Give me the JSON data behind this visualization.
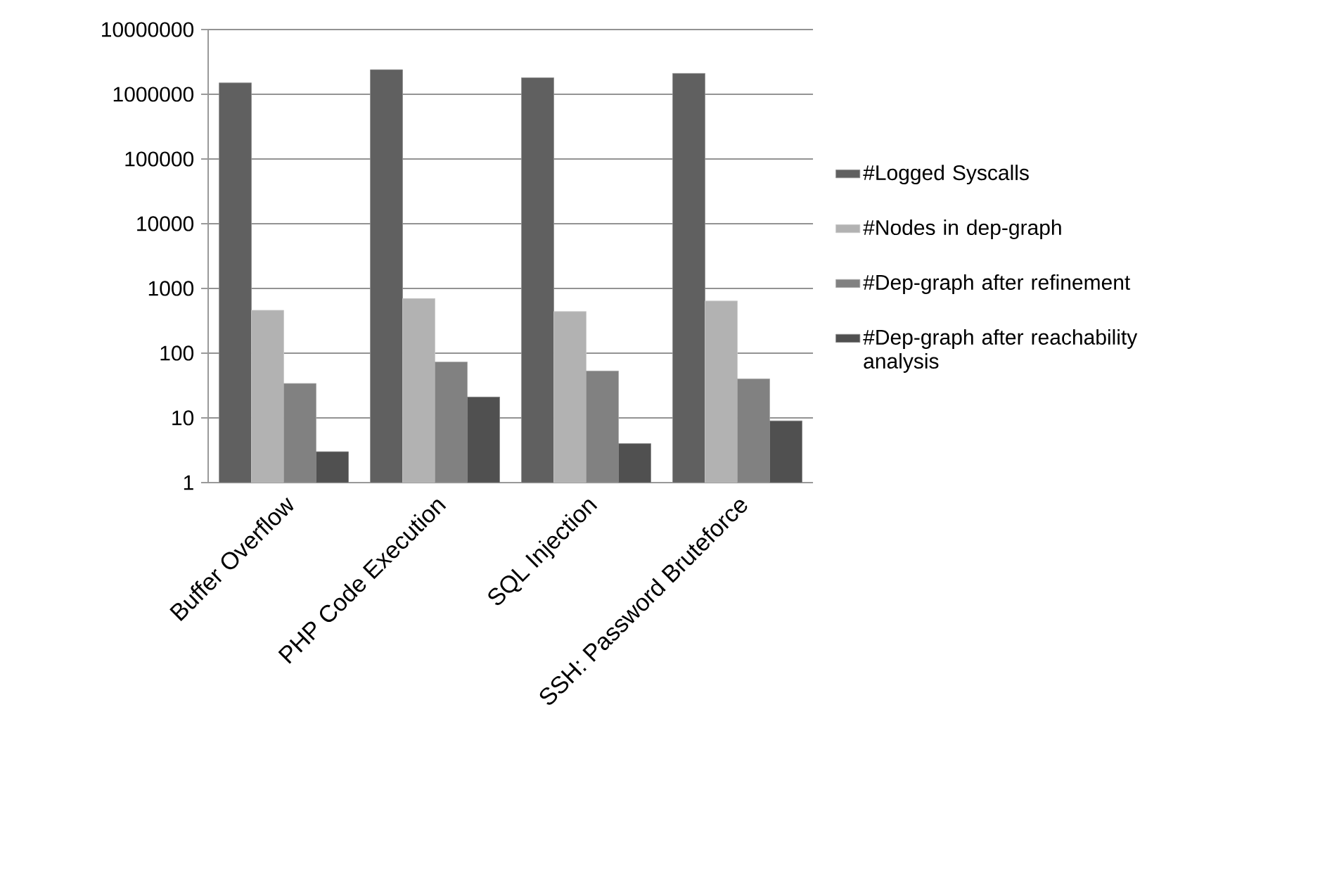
{
  "chart_data": {
    "type": "bar",
    "categories": [
      "Buffer Overflow",
      "PHP Code Execution",
      "SQL Injection",
      "SSH: Password Bruteforce"
    ],
    "series": [
      {
        "name": "#Logged Syscalls",
        "color": "#606060",
        "values": [
          1500000,
          2400000,
          1800000,
          2100000
        ]
      },
      {
        "name": "#Nodes in dep-graph",
        "color": "#b2b2b2",
        "values": [
          460,
          700,
          440,
          640
        ]
      },
      {
        "name": "#Dep-graph after refinement",
        "color": "#818181",
        "values": [
          34,
          73,
          53,
          40
        ]
      },
      {
        "name": "#Dep-graph after reachability analysis",
        "color": "#505050",
        "values": [
          3,
          21,
          4,
          9
        ]
      }
    ],
    "log": true,
    "ylim": [
      1,
      10000000
    ],
    "yticks": [
      1,
      10,
      100,
      1000,
      10000,
      100000,
      1000000,
      10000000
    ],
    "grid": "y",
    "legend": "right"
  }
}
